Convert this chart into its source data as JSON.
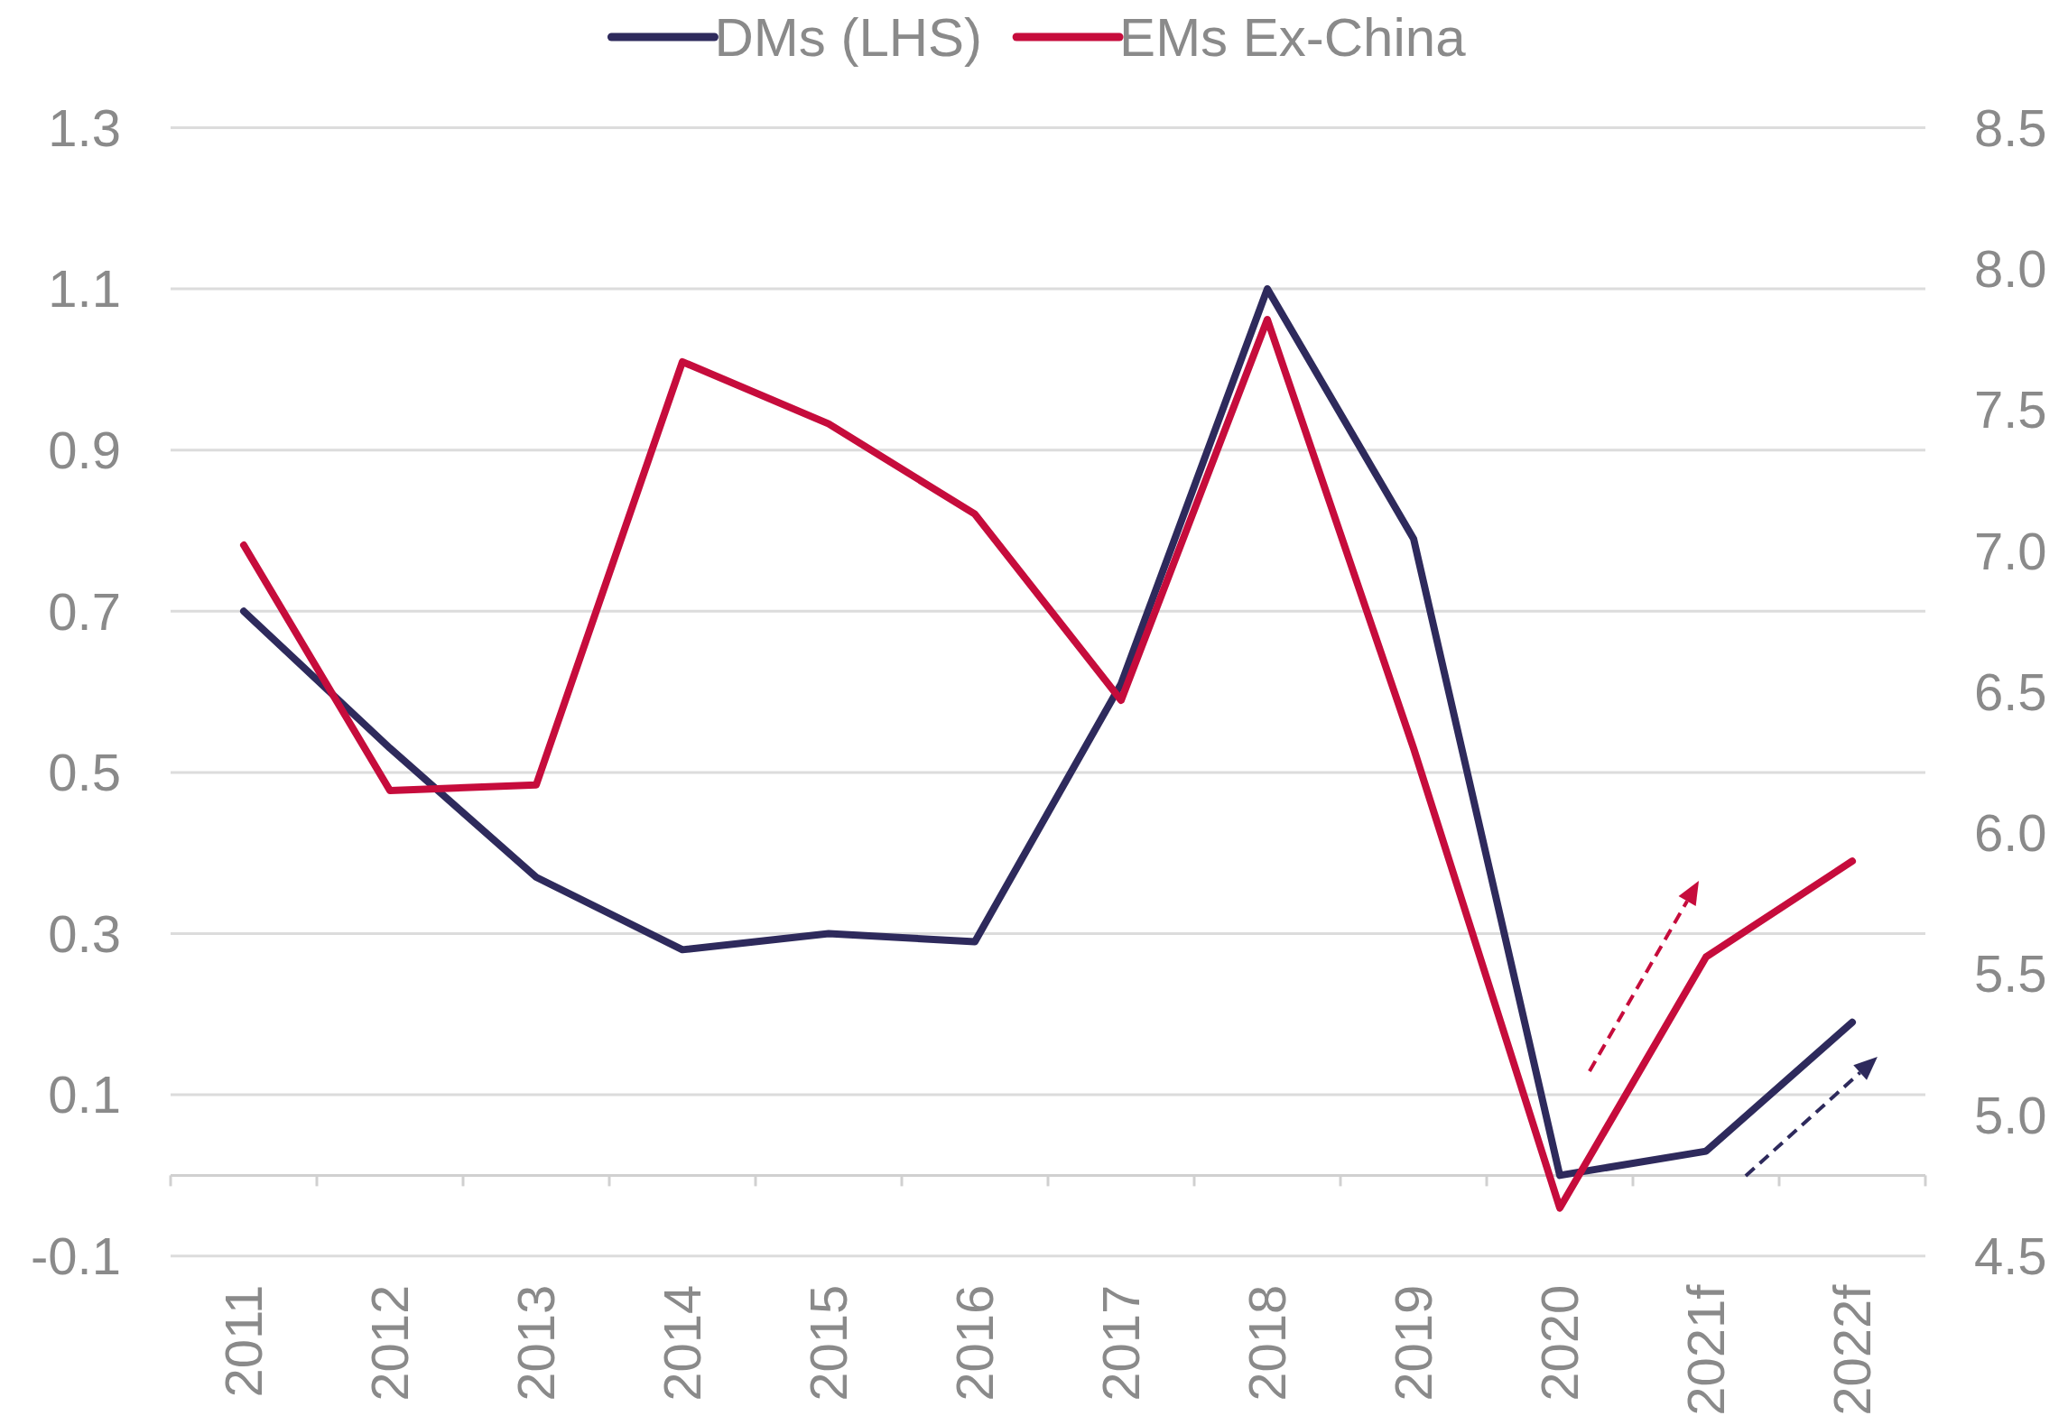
{
  "chart_data": {
    "type": "line",
    "categories": [
      "2011",
      "2012",
      "2013",
      "2014",
      "2015",
      "2016",
      "2017",
      "2018",
      "2019",
      "2020",
      "2021f",
      "2022f"
    ],
    "series": [
      {
        "name": "DMs (LHS)",
        "color": "#2e2a5c",
        "values": [
          0.7,
          0.53,
          0.37,
          0.28,
          0.3,
          0.29,
          0.61,
          1.1,
          0.79,
          0.0,
          0.03,
          0.19
        ]
      },
      {
        "name": "EMs Ex-China",
        "color": "#c60c3c",
        "axis": "y2",
        "values": [
          7.02,
          6.15,
          6.17,
          7.67,
          7.45,
          7.13,
          6.47,
          7.82,
          6.3,
          4.67,
          5.56,
          5.9
        ]
      }
    ],
    "ylim": [
      -0.1,
      1.3
    ],
    "yticks": [
      -0.1,
      0.1,
      0.3,
      0.5,
      0.7,
      0.9,
      1.1,
      1.3
    ],
    "y2lim": [
      4.5,
      8.5
    ],
    "y2ticks": [
      4.5,
      {
        "value": 5,
        "label": "5.0"
      },
      5.5,
      {
        "value": 6,
        "label": "6.0"
      },
      6.5,
      {
        "value": 7,
        "label": "7.0"
      },
      7.5,
      {
        "value": 8,
        "label": "8.0"
      },
      8.5
    ],
    "grid": "y",
    "legend": "top"
  }
}
